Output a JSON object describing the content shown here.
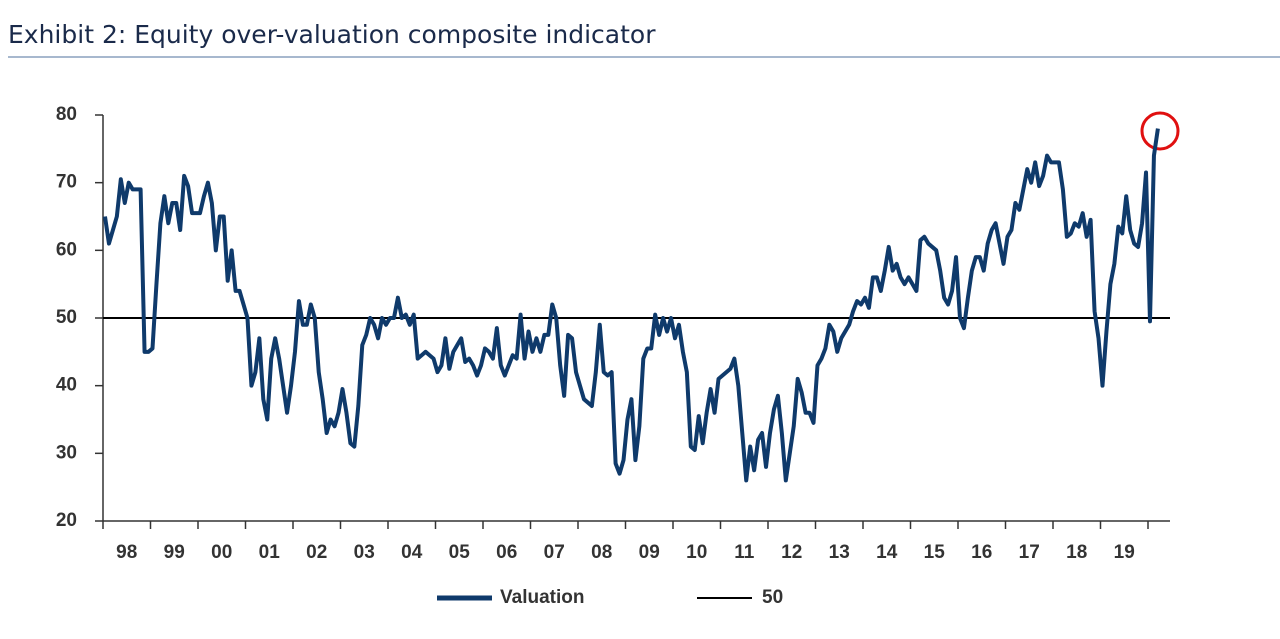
{
  "chart_data": {
    "type": "line",
    "title": "Exhibit 2: Equity over-valuation composite indicator",
    "categories": [
      null,
      null,
      null,
      null,
      null,
      null,
      "98",
      null,
      null,
      null,
      null,
      null,
      null,
      null,
      null,
      null,
      null,
      null,
      "99",
      null,
      null,
      null,
      null,
      null,
      null,
      null,
      null,
      null,
      null,
      null,
      "00",
      null,
      null,
      null,
      null,
      null,
      null,
      null,
      null,
      null,
      null,
      null,
      "01",
      null,
      null,
      null,
      null,
      null,
      null,
      null,
      null,
      null,
      null,
      null,
      "02",
      null,
      null,
      null,
      null,
      null,
      null,
      null,
      null,
      null,
      null,
      null,
      "03",
      null,
      null,
      null,
      null,
      null,
      null,
      null,
      null,
      null,
      null,
      null,
      "04",
      null,
      null,
      null,
      null,
      null,
      null,
      null,
      null,
      null,
      null,
      null,
      "05",
      null,
      null,
      null,
      null,
      null,
      null,
      null,
      null,
      null,
      null,
      null,
      "06",
      null,
      null,
      null,
      null,
      null,
      null,
      null,
      null,
      null,
      null,
      null,
      "07",
      null,
      null,
      null,
      null,
      null,
      null,
      null,
      null,
      null,
      null,
      null,
      "08",
      null,
      null,
      null,
      null,
      null,
      null,
      null,
      null,
      null,
      null,
      null,
      "09",
      null,
      null,
      null,
      null,
      null,
      null,
      null,
      null,
      null,
      null,
      null,
      "10",
      null,
      null,
      null,
      null,
      null,
      null,
      null,
      null,
      null,
      null,
      null,
      "11",
      null,
      null,
      null,
      null,
      null,
      null,
      null,
      null,
      null,
      null,
      null,
      "12",
      null,
      null,
      null,
      null,
      null,
      null,
      null,
      null,
      null,
      null,
      null,
      "13",
      null,
      null,
      null,
      null,
      null,
      null,
      null,
      null,
      null,
      null,
      null,
      "14",
      null,
      null,
      null,
      null,
      null,
      null,
      null,
      null,
      null,
      null,
      null,
      "15",
      null,
      null,
      null,
      null,
      null,
      null,
      null,
      null,
      null,
      null,
      null,
      "16",
      null,
      null,
      null,
      null,
      null,
      null,
      null,
      null,
      null,
      null,
      null,
      "17",
      null,
      null,
      null,
      null,
      null,
      null,
      null,
      null,
      null,
      null,
      null,
      "18",
      null,
      null,
      null,
      null,
      null,
      null,
      null,
      null,
      null,
      null,
      null,
      "19",
      null,
      null,
      null,
      null,
      null,
      null,
      null,
      null
    ],
    "series": [
      {
        "name": "Valuation",
        "color": "#0f3a6b",
        "values": [
          65,
          61,
          63,
          65,
          70.5,
          67,
          70,
          69,
          69,
          69,
          45,
          45,
          45.5,
          55,
          64,
          68,
          64,
          67,
          67,
          63,
          71,
          69.5,
          65.5,
          65.5,
          65.5,
          68,
          70,
          67,
          60,
          65,
          65,
          55.5,
          60,
          54,
          54,
          52,
          50,
          40,
          42,
          47,
          38,
          35,
          44,
          47,
          44,
          40,
          36,
          40,
          45,
          52.5,
          49,
          49,
          52,
          50,
          42,
          38,
          33,
          35,
          34,
          36,
          39.5,
          36,
          31.5,
          31,
          37,
          46,
          47.5,
          50,
          49,
          47,
          50,
          49,
          50,
          50,
          53,
          50,
          50.5,
          49,
          50.5,
          44,
          44.5,
          45,
          44.5,
          44,
          42,
          43,
          47,
          42.5,
          45,
          46,
          47,
          43.5,
          44,
          43,
          41.5,
          43,
          45.5,
          45,
          44,
          48.5,
          43,
          41.5,
          43,
          44.5,
          44,
          50.5,
          44,
          48,
          45,
          47,
          45,
          47.5,
          47.5,
          52,
          50,
          43,
          38.5,
          47.5,
          47,
          42,
          40,
          38,
          37.5,
          37,
          42,
          49,
          42,
          41.5,
          42,
          28.5,
          27,
          29,
          35,
          38,
          29,
          34,
          44,
          45.5,
          45.5,
          50.5,
          47.5,
          50,
          48,
          50,
          47,
          49,
          45,
          42,
          31,
          30.5,
          35.5,
          31.5,
          36,
          39.5,
          36,
          41,
          41.5,
          42,
          42.5,
          44,
          40,
          33,
          26,
          31,
          27.5,
          32,
          33,
          28,
          33,
          36.5,
          38.5,
          33,
          26,
          30,
          34,
          41,
          39,
          36,
          36,
          34.5,
          43,
          44,
          45.5,
          49,
          48,
          45,
          47,
          48,
          49,
          51,
          52.5,
          52,
          53,
          51.5,
          56,
          56,
          54,
          57,
          60.5,
          57,
          58,
          56,
          55,
          56,
          55,
          54,
          61.5,
          62,
          61,
          60.5,
          60,
          57,
          53,
          52,
          54,
          59,
          50,
          48.5,
          53,
          57,
          59,
          59,
          57,
          61,
          63,
          64,
          61,
          58,
          62,
          63,
          67,
          66,
          69,
          72,
          70,
          73,
          69.5,
          71,
          74,
          73,
          73,
          73,
          69,
          62,
          62.5,
          64,
          63.5,
          65.5,
          62,
          64.5,
          51,
          47,
          40,
          48,
          55,
          58,
          63.5,
          62.5,
          68,
          63,
          61,
          60.5,
          64,
          71.5,
          49.5,
          74,
          78
        ]
      }
    ],
    "reference_line": {
      "name": "50",
      "value": 50,
      "color": "#000000"
    },
    "ylim": [
      20,
      80
    ],
    "yticks": [
      20,
      30,
      40,
      50,
      60,
      70,
      80
    ]
  }
}
